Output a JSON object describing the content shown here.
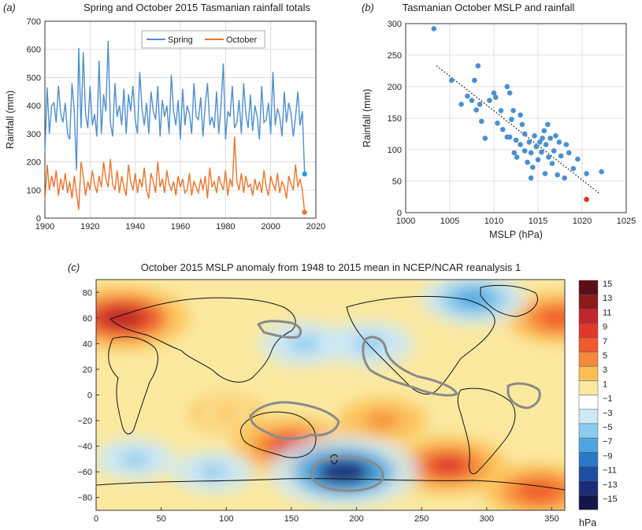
{
  "panels": {
    "a": "(a)",
    "b": "(b)",
    "c": "(c)"
  },
  "chart_data": [
    {
      "id": "a",
      "type": "line",
      "title": "Spring and October 2015 Tasmanian rainfall totals",
      "xlabel": "",
      "ylabel": "Rainfall (mm)",
      "xlim": [
        1900,
        2020
      ],
      "ylim": [
        0,
        700
      ],
      "xticks": [
        "1900",
        "1920",
        "1940",
        "1960",
        "1980",
        "2000",
        "2020"
      ],
      "yticks": [
        "0",
        "100",
        "200",
        "300",
        "400",
        "500",
        "600",
        "700"
      ],
      "grid": true,
      "legend": "top-right",
      "x_start": 1900,
      "series": [
        {
          "name": "Spring",
          "color": "#4e8fcf",
          "values": [
            230,
            465,
            300,
            400,
            410,
            340,
            470,
            370,
            340,
            410,
            300,
            280,
            480,
            380,
            170,
            605,
            320,
            590,
            370,
            320,
            470,
            330,
            370,
            290,
            560,
            300,
            440,
            380,
            630,
            340,
            290,
            480,
            360,
            400,
            330,
            460,
            300,
            440,
            380,
            470,
            350,
            300,
            520,
            390,
            330,
            410,
            300,
            450,
            380,
            350,
            470,
            290,
            420,
            360,
            400,
            300,
            510,
            380,
            330,
            420,
            280,
            460,
            330,
            400,
            370,
            300,
            480,
            360,
            350,
            430,
            290,
            400,
            480,
            330,
            360,
            320,
            450,
            300,
            400,
            550,
            280,
            380,
            360,
            470,
            320,
            340,
            420,
            300,
            480,
            370,
            320,
            440,
            310,
            400,
            360,
            280,
            470,
            340,
            350,
            410,
            300,
            520,
            330,
            390,
            360,
            290,
            450,
            340,
            410,
            370,
            290,
            360,
            450,
            330,
            380,
            157
          ]
        },
        {
          "name": "October",
          "color": "#e8752b",
          "values": [
            60,
            190,
            100,
            150,
            110,
            170,
            80,
            140,
            100,
            160,
            90,
            130,
            70,
            150,
            90,
            30,
            200,
            150,
            80,
            130,
            100,
            170,
            120,
            90,
            150,
            110,
            200,
            140,
            110,
            210,
            120,
            100,
            170,
            90,
            150,
            110,
            80,
            190,
            130,
            100,
            160,
            90,
            140,
            110,
            180,
            100,
            70,
            160,
            130,
            90,
            200,
            110,
            140,
            90,
            170,
            120,
            100,
            130,
            80,
            150,
            110,
            140,
            90,
            100,
            160,
            80,
            130,
            110,
            90,
            140,
            100,
            150,
            70,
            180,
            110,
            130,
            90,
            150,
            120,
            100,
            170,
            80,
            140,
            110,
            290,
            130,
            100,
            160,
            90,
            150,
            110,
            120,
            80,
            140,
            100,
            130,
            90,
            170,
            110,
            80,
            150,
            120,
            100,
            160,
            90,
            130,
            110,
            70,
            150,
            120,
            100,
            190,
            110,
            140,
            100,
            21
          ]
        }
      ],
      "endpoints": [
        {
          "name": "Spring 2015",
          "x": 2015,
          "y": 157,
          "color": "#1ba0e0"
        },
        {
          "name": "October 2015",
          "x": 2015,
          "y": 21,
          "color": "#e8752b"
        }
      ]
    },
    {
      "id": "b",
      "type": "scatter",
      "title": "Tasmanian October MSLP and rainfall",
      "xlabel": "MSLP (hPa)",
      "ylabel": "Rainfall (mm)",
      "xlim": [
        1000,
        1025
      ],
      "ylim": [
        0,
        300
      ],
      "xticks": [
        "1000",
        "1005",
        "1010",
        "1015",
        "1020",
        "1025"
      ],
      "yticks": [
        "0",
        "50",
        "100",
        "150",
        "200",
        "250",
        "300"
      ],
      "grid": true,
      "point_color": "#4a90d0",
      "highlight_color": "#e03020",
      "trend": {
        "x": [
          1003.5,
          1022
        ],
        "y": [
          233,
          30
        ]
      },
      "points": [
        [
          1003.2,
          292
        ],
        [
          1005.2,
          210
        ],
        [
          1006.3,
          172
        ],
        [
          1007.0,
          185
        ],
        [
          1007.5,
          178
        ],
        [
          1007.8,
          210
        ],
        [
          1008.2,
          233
        ],
        [
          1008.0,
          163
        ],
        [
          1008.4,
          172
        ],
        [
          1008.6,
          145
        ],
        [
          1009.0,
          118
        ],
        [
          1009.5,
          178
        ],
        [
          1010.0,
          190
        ],
        [
          1010.2,
          183
        ],
        [
          1010.4,
          142
        ],
        [
          1010.8,
          162
        ],
        [
          1011.0,
          132
        ],
        [
          1011.5,
          200
        ],
        [
          1011.8,
          190
        ],
        [
          1011.8,
          120
        ],
        [
          1012.0,
          148
        ],
        [
          1012.2,
          162
        ],
        [
          1012.3,
          95
        ],
        [
          1012.5,
          115
        ],
        [
          1012.6,
          88
        ],
        [
          1013.0,
          108
        ],
        [
          1013.2,
          140
        ],
        [
          1013.5,
          125
        ],
        [
          1013.5,
          98
        ],
        [
          1013.8,
          80
        ],
        [
          1014.0,
          112
        ],
        [
          1014.2,
          95
        ],
        [
          1014.4,
          72
        ],
        [
          1014.6,
          122
        ],
        [
          1014.8,
          105
        ],
        [
          1015.0,
          84
        ],
        [
          1015.2,
          112
        ],
        [
          1015.4,
          96
        ],
        [
          1015.5,
          118
        ],
        [
          1015.7,
          130
        ],
        [
          1015.9,
          108
        ],
        [
          1016.1,
          140
        ],
        [
          1016.2,
          88
        ],
        [
          1016.4,
          118
        ],
        [
          1016.6,
          78
        ],
        [
          1016.8,
          98
        ],
        [
          1017.0,
          122
        ],
        [
          1017.2,
          60
        ],
        [
          1017.4,
          112
        ],
        [
          1017.6,
          90
        ],
        [
          1018.0,
          55
        ],
        [
          1018.2,
          108
        ],
        [
          1018.5,
          95
        ],
        [
          1019.0,
          70
        ],
        [
          1019.5,
          85
        ],
        [
          1020.5,
          62
        ],
        [
          1022.2,
          65
        ],
        [
          1013.0,
          155
        ],
        [
          1015.8,
          62
        ],
        [
          1011.5,
          120
        ],
        [
          1014.2,
          55
        ]
      ],
      "highlight": [
        [
          1020.5,
          21
        ]
      ]
    },
    {
      "id": "c",
      "type": "heatmap",
      "title": "October 2015 MSLP anomaly from 1948 to 2015 mean in NCEP/NCAR reanalysis 1",
      "xlabel": "",
      "ylabel": "",
      "xlim": [
        0,
        360
      ],
      "ylim": [
        -90,
        90
      ],
      "xticks": [
        "0",
        "50",
        "100",
        "150",
        "200",
        "250",
        "300",
        "350"
      ],
      "yticks": [
        "80",
        "60",
        "40",
        "20",
        "0",
        "−20",
        "−40",
        "−60",
        "−80"
      ],
      "colorbar": {
        "labels": [
          "15",
          "13",
          "11",
          "9",
          "7",
          "5",
          "3",
          "1",
          "−1",
          "−3",
          "−5",
          "−7",
          "−9",
          "−11",
          "−13",
          "−15"
        ],
        "unit": "hPa",
        "colors": [
          "#5a0f1a",
          "#8c1a1a",
          "#c0262a",
          "#e0392b",
          "#f05a2c",
          "#f7893a",
          "#fbbf55",
          "#fbe9a0",
          "#ffffff",
          "#cde8f5",
          "#8ccbee",
          "#4ca7e0",
          "#2a79c8",
          "#1f4fa5",
          "#1b2c7a",
          "#14164a"
        ]
      },
      "anomalies": [
        {
          "lon": 20,
          "lat": 60,
          "value": 11
        },
        {
          "lon": 150,
          "lat": -40,
          "value": 9
        },
        {
          "lon": 220,
          "lat": -20,
          "value": 5
        },
        {
          "lon": 270,
          "lat": -55,
          "value": 9
        },
        {
          "lon": 340,
          "lat": -75,
          "value": 8
        },
        {
          "lon": 355,
          "lat": 60,
          "value": 7
        },
        {
          "lon": 190,
          "lat": -60,
          "value": -13
        },
        {
          "lon": 160,
          "lat": 40,
          "value": -5
        },
        {
          "lon": 210,
          "lat": 40,
          "value": -5
        },
        {
          "lon": 290,
          "lat": 75,
          "value": -7
        },
        {
          "lon": 100,
          "lat": -15,
          "value": 3
        },
        {
          "lon": 90,
          "lat": -60,
          "value": -4
        },
        {
          "lon": 30,
          "lat": -50,
          "value": -4
        }
      ]
    }
  ]
}
